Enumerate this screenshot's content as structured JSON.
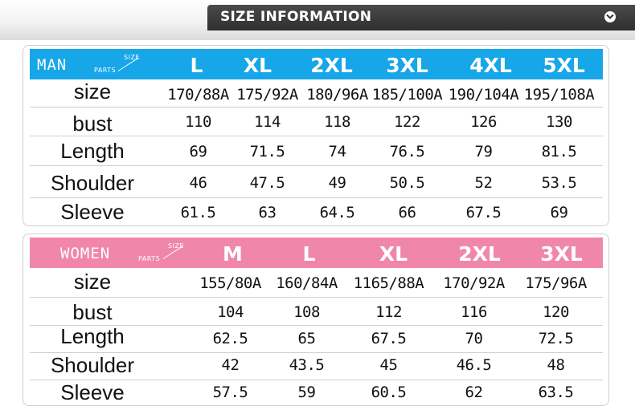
{
  "header": {
    "title": "SIZE INFORMATION",
    "icon": "chevron-down-icon"
  },
  "man": {
    "title": "MAN",
    "corner_top": "SIZE",
    "corner_bottom": "PARTS",
    "sizes": [
      "L",
      "XL",
      "2XL",
      "3XL",
      "4XL",
      "5XL"
    ],
    "rows": [
      {
        "label": "size",
        "values": [
          "170/88A",
          "175/92A",
          "180/96A",
          "185/100A",
          "190/104A",
          "195/108A"
        ]
      },
      {
        "label": "bust",
        "values": [
          "110",
          "114",
          "118",
          "122",
          "126",
          "130"
        ]
      },
      {
        "label": "Length",
        "values": [
          "69",
          "71.5",
          "74",
          "76.5",
          "79",
          "81.5"
        ]
      },
      {
        "label": "Shoulder",
        "values": [
          "46",
          "47.5",
          "49",
          "50.5",
          "52",
          "53.5"
        ]
      },
      {
        "label": "Sleeve",
        "values": [
          "61.5",
          "63",
          "64.5",
          "66",
          "67.5",
          "69"
        ]
      }
    ]
  },
  "women": {
    "title": "WOMEN",
    "corner_top": "SIZE",
    "corner_bottom": "PARTS",
    "sizes": [
      "M",
      "L",
      "XL",
      "2XL",
      "3XL"
    ],
    "rows": [
      {
        "label": "size",
        "values": [
          "155/80A",
          "160/84A",
          "1165/88A",
          "170/92A",
          "175/96A"
        ]
      },
      {
        "label": "bust",
        "values": [
          "104",
          "108",
          "112",
          "116",
          "120"
        ]
      },
      {
        "label": "Length",
        "values": [
          "62.5",
          "65",
          "67.5",
          "70",
          "72.5"
        ]
      },
      {
        "label": "Shoulder",
        "values": [
          "42",
          "43.5",
          "45",
          "46.5",
          "48"
        ]
      },
      {
        "label": "Sleeve",
        "values": [
          "57.5",
          "59",
          "60.5",
          "62",
          "63.5"
        ]
      }
    ]
  },
  "colors": {
    "man_band": "#17a6e8",
    "women_band": "#f087aa",
    "header": "#3a3a3a"
  }
}
